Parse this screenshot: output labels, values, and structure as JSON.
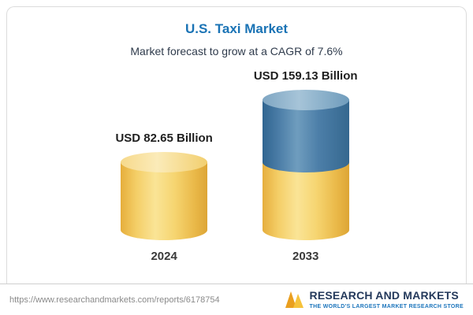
{
  "header": {
    "title": "U.S. Taxi Market",
    "subtitle": "Market forecast to grow at a CAGR of 7.6%"
  },
  "chart_data": {
    "type": "bar",
    "variant": "3d-cylinder",
    "title": "U.S. Taxi Market",
    "subtitle": "Market forecast to grow at a CAGR of 7.6%",
    "unit": "USD Billion",
    "cagr_percent": 7.6,
    "categories": [
      "2024",
      "2033"
    ],
    "values": [
      82.65,
      159.13
    ],
    "value_labels": [
      "USD 82.65 Billion",
      "USD 159.13 Billion"
    ],
    "series": [
      {
        "name": "base-2024-value",
        "color": "#F2CB59",
        "values": [
          82.65,
          82.65
        ]
      },
      {
        "name": "growth-to-2033",
        "color": "#4579A4",
        "values": [
          0,
          76.48
        ]
      }
    ],
    "legend": "none",
    "grid": false,
    "axes": "none"
  },
  "footer": {
    "url": "https://www.researchandmarkets.com/reports/6178754",
    "logo_text": "RESEARCH AND MARKETS",
    "logo_tagline": "THE WORLD'S LARGEST MARKET RESEARCH STORE"
  },
  "colors": {
    "title_blue": "#1A73B5",
    "bar_yellow": "#F2CB59",
    "bar_blue": "#4579A4",
    "logo_navy": "#24395B",
    "logo_gold": "#EA9F1F"
  }
}
